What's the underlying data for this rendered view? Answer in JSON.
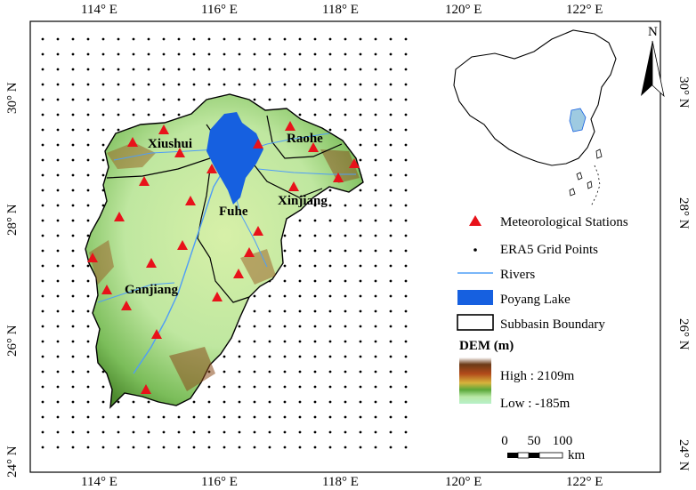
{
  "map": {
    "top_ticks": [
      "114° E",
      "116° E",
      "118° E",
      "120° E",
      "122° E"
    ],
    "bottom_ticks": [
      "114° E",
      "116° E",
      "118° E",
      "120° E",
      "122° E"
    ],
    "left_ticks": [
      "30° N",
      "28° N",
      "26° N",
      "24° N"
    ],
    "right_ticks": [
      "30° N",
      "28° N",
      "26° N",
      "24° N"
    ],
    "basins": [
      "Xiushui",
      "Raohe",
      "Xinjiang",
      "Fuhe",
      "Ganjiang"
    ],
    "north_label": "N"
  },
  "legend": {
    "stations": "Meteorological Stations",
    "grid_points": "ERA5 Grid Points",
    "rivers": "Rivers",
    "lake": "Poyang Lake",
    "boundary": "Subbasin Boundary",
    "dem_title": "DEM (m)",
    "dem_high": "High : 2109m",
    "dem_low": "Low : -185m"
  },
  "scalebar": {
    "labels": [
      "0",
      "50",
      "100"
    ],
    "unit": "km"
  },
  "colors": {
    "station": "#e8121a",
    "river": "#4f9df7",
    "lake": "#1660e0",
    "dem_low": "#8fe0a8",
    "dem_mid": "#d4e66a",
    "dem_high": "#8a4a16"
  }
}
